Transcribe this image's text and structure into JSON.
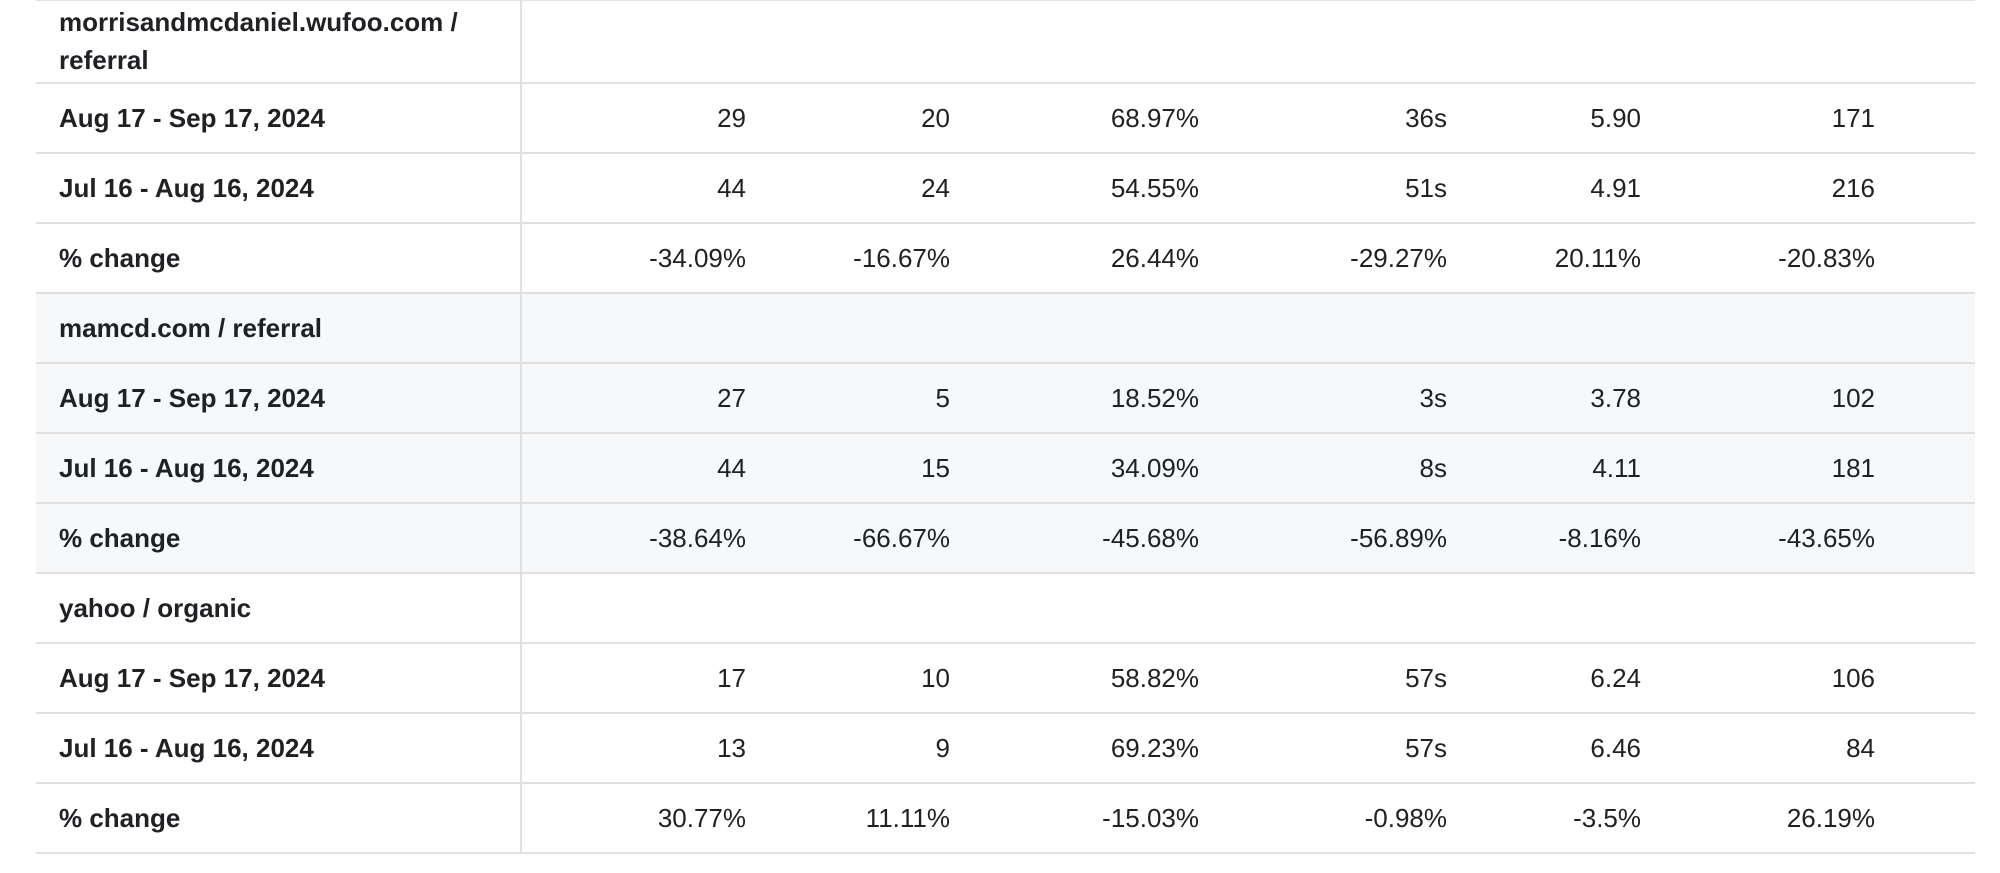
{
  "table": {
    "groups": [
      {
        "name": "morrisandmcdaniel.wufoo.com / referral",
        "shaded": false,
        "rows": [
          {
            "label": "Aug 17 - Sep 17, 2024",
            "values": [
              "29",
              "20",
              "68.97%",
              "36s",
              "5.90",
              "171"
            ]
          },
          {
            "label": "Jul 16 - Aug 16, 2024",
            "values": [
              "44",
              "24",
              "54.55%",
              "51s",
              "4.91",
              "216"
            ]
          },
          {
            "label": "% change",
            "values": [
              "-34.09%",
              "-16.67%",
              "26.44%",
              "-29.27%",
              "20.11%",
              "-20.83%"
            ]
          }
        ]
      },
      {
        "name": "mamcd.com / referral",
        "shaded": true,
        "rows": [
          {
            "label": "Aug 17 - Sep 17, 2024",
            "values": [
              "27",
              "5",
              "18.52%",
              "3s",
              "3.78",
              "102"
            ]
          },
          {
            "label": "Jul 16 - Aug 16, 2024",
            "values": [
              "44",
              "15",
              "34.09%",
              "8s",
              "4.11",
              "181"
            ]
          },
          {
            "label": "% change",
            "values": [
              "-38.64%",
              "-66.67%",
              "-45.68%",
              "-56.89%",
              "-8.16%",
              "-43.65%"
            ]
          }
        ]
      },
      {
        "name": "yahoo / organic",
        "shaded": false,
        "rows": [
          {
            "label": "Aug 17 - Sep 17, 2024",
            "values": [
              "17",
              "10",
              "58.82%",
              "57s",
              "6.24",
              "106"
            ]
          },
          {
            "label": "Jul 16 - Aug 16, 2024",
            "values": [
              "13",
              "9",
              "69.23%",
              "57s",
              "6.46",
              "84"
            ]
          },
          {
            "label": "% change",
            "values": [
              "30.77%",
              "11.11%",
              "-15.03%",
              "-0.98%",
              "-3.5%",
              "26.19%"
            ]
          }
        ]
      }
    ]
  },
  "colors": {
    "shaded_background": "#f6f8fa",
    "border": "#e0e0e0",
    "text": "#202124"
  }
}
